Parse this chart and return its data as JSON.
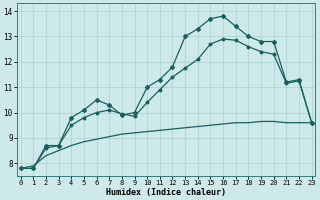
{
  "xlabel": "Humidex (Indice chaleur)",
  "background_color": "#cee9e9",
  "grid_color": "#afd4d4",
  "line_color": "#1a5f5f",
  "xlim": [
    -0.3,
    23.3
  ],
  "ylim": [
    7.5,
    14.3
  ],
  "xticks": [
    0,
    1,
    2,
    3,
    4,
    5,
    6,
    7,
    8,
    9,
    10,
    11,
    12,
    13,
    14,
    15,
    16,
    17,
    18,
    19,
    20,
    21,
    22,
    23
  ],
  "yticks": [
    8,
    9,
    10,
    11,
    12,
    13,
    14
  ],
  "line1_x": [
    0,
    1,
    2,
    3,
    4,
    5,
    6,
    7,
    8,
    9,
    10,
    11,
    12,
    13,
    14,
    15,
    16,
    17,
    18,
    19,
    20,
    21,
    22,
    23
  ],
  "line1_y": [
    7.8,
    7.8,
    8.7,
    8.7,
    9.8,
    10.1,
    10.5,
    10.3,
    9.9,
    10.0,
    11.0,
    11.3,
    11.8,
    13.0,
    13.3,
    13.7,
    13.8,
    13.4,
    13.0,
    12.8,
    12.8,
    11.2,
    11.3,
    9.6
  ],
  "line2_x": [
    0,
    1,
    2,
    3,
    4,
    5,
    6,
    7,
    8,
    9,
    10,
    11,
    12,
    13,
    14,
    15,
    16,
    17,
    18,
    19,
    20,
    21,
    22,
    23
  ],
  "line2_y": [
    7.8,
    7.8,
    8.6,
    8.7,
    9.5,
    9.8,
    10.0,
    10.1,
    9.95,
    9.85,
    10.4,
    10.9,
    11.4,
    11.75,
    12.1,
    12.7,
    12.9,
    12.85,
    12.6,
    12.4,
    12.3,
    11.15,
    11.25,
    9.6
  ],
  "line3_x": [
    0,
    1,
    2,
    3,
    4,
    5,
    6,
    7,
    8,
    9,
    10,
    11,
    12,
    13,
    14,
    15,
    16,
    17,
    18,
    19,
    20,
    21,
    22,
    23
  ],
  "line3_y": [
    7.8,
    7.9,
    8.3,
    8.5,
    8.7,
    8.85,
    8.95,
    9.05,
    9.15,
    9.2,
    9.25,
    9.3,
    9.35,
    9.4,
    9.45,
    9.5,
    9.55,
    9.6,
    9.6,
    9.65,
    9.65,
    9.6,
    9.6,
    9.6
  ]
}
